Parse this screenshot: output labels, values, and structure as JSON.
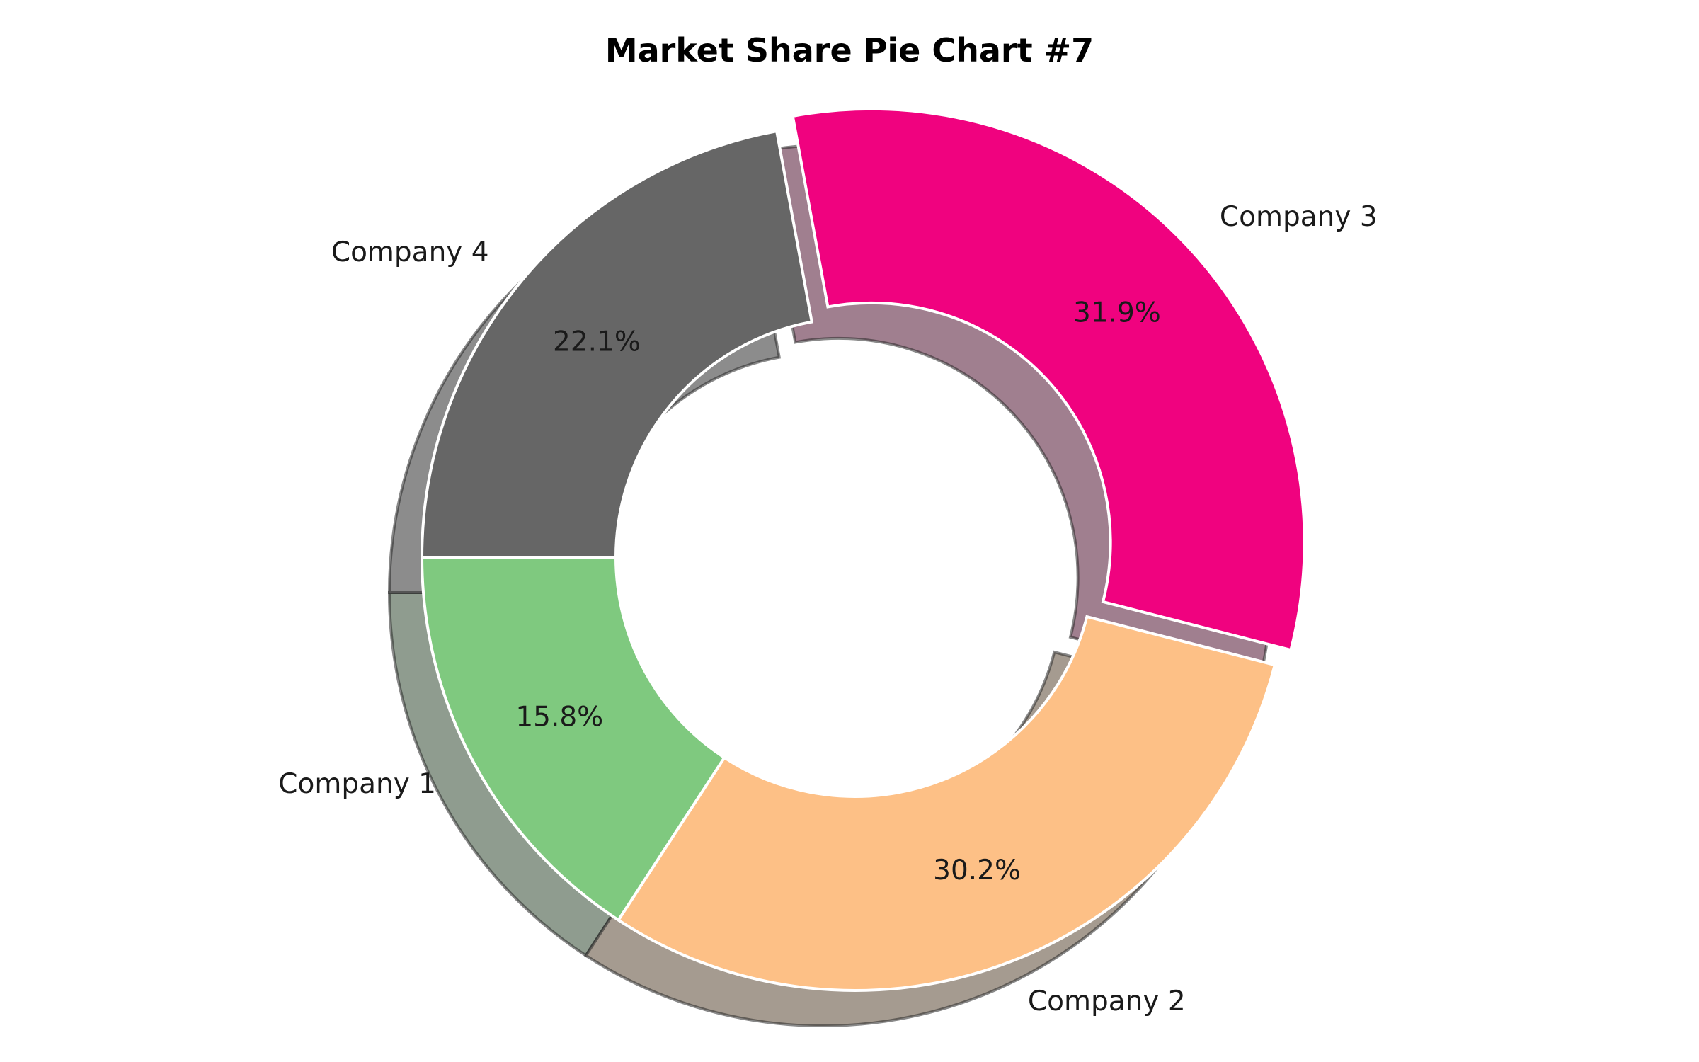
{
  "chart_data": {
    "type": "pie",
    "title": "Market Share Pie Chart #7",
    "donut": true,
    "shadow": true,
    "slices": [
      {
        "label": "Company 1",
        "value": 15.8,
        "pct_text": "15.8%",
        "color": "#7fc97f",
        "shadow": "#8f9c8f"
      },
      {
        "label": "Company 2",
        "value": 30.2,
        "pct_text": "30.2%",
        "color": "#fdc086",
        "shadow": "#a59b90"
      },
      {
        "label": "Company 3",
        "value": 31.9,
        "pct_text": "31.9%",
        "color": "#f0027f",
        "shadow": "#a07f8f",
        "exploded": true
      },
      {
        "label": "Company 4",
        "value": 22.1,
        "pct_text": "22.1%",
        "color": "#666666",
        "shadow": "#8c8c8c"
      }
    ]
  }
}
